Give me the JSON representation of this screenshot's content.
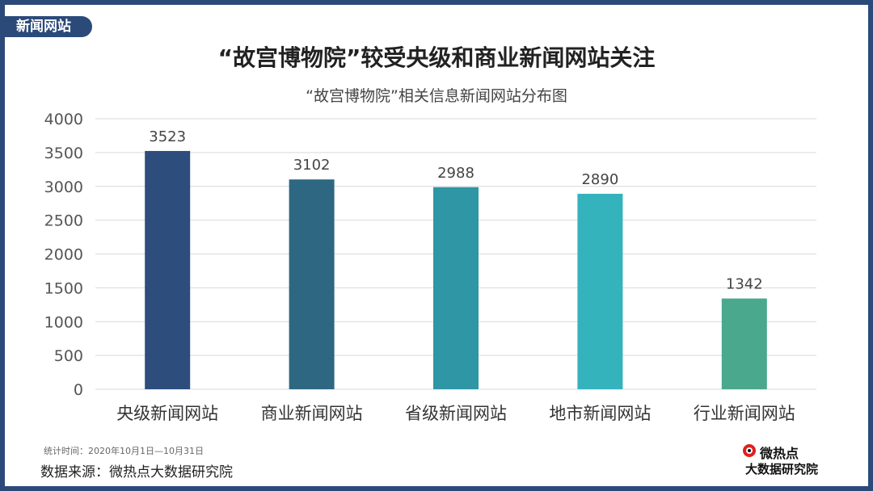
{
  "tag": "新闻网站",
  "title": "“故宫博物院”较受央级和商业新闻网站关注",
  "footnote": "统计时间：2020年10月1日—10月31日",
  "source": "数据来源：微热点大数据研究院",
  "logo": {
    "top": "微热点",
    "bottom": "大数据研究院",
    "icon": "weibo-eye-icon"
  },
  "colors": {
    "frame": "#2b4a7a",
    "grid": "#d9d9d9",
    "axis_text": "#555555"
  },
  "chart_data": {
    "type": "bar",
    "title": "“故宫博物院”相关信息新闻网站分布图",
    "categories": [
      "央级新闻网站",
      "商业新闻网站",
      "省级新闻网站",
      "地市新闻网站",
      "行业新闻网站"
    ],
    "values": [
      3523,
      3102,
      2988,
      2890,
      1342
    ],
    "bar_colors": [
      "#2d4d7d",
      "#2e6781",
      "#2f96a6",
      "#35b3bd",
      "#4aa88c"
    ],
    "ylim": [
      0,
      4000
    ],
    "yticks": [
      0,
      500,
      1000,
      1500,
      2000,
      2500,
      3000,
      3500,
      4000
    ],
    "grid": true,
    "xlabel": "",
    "ylabel": ""
  }
}
